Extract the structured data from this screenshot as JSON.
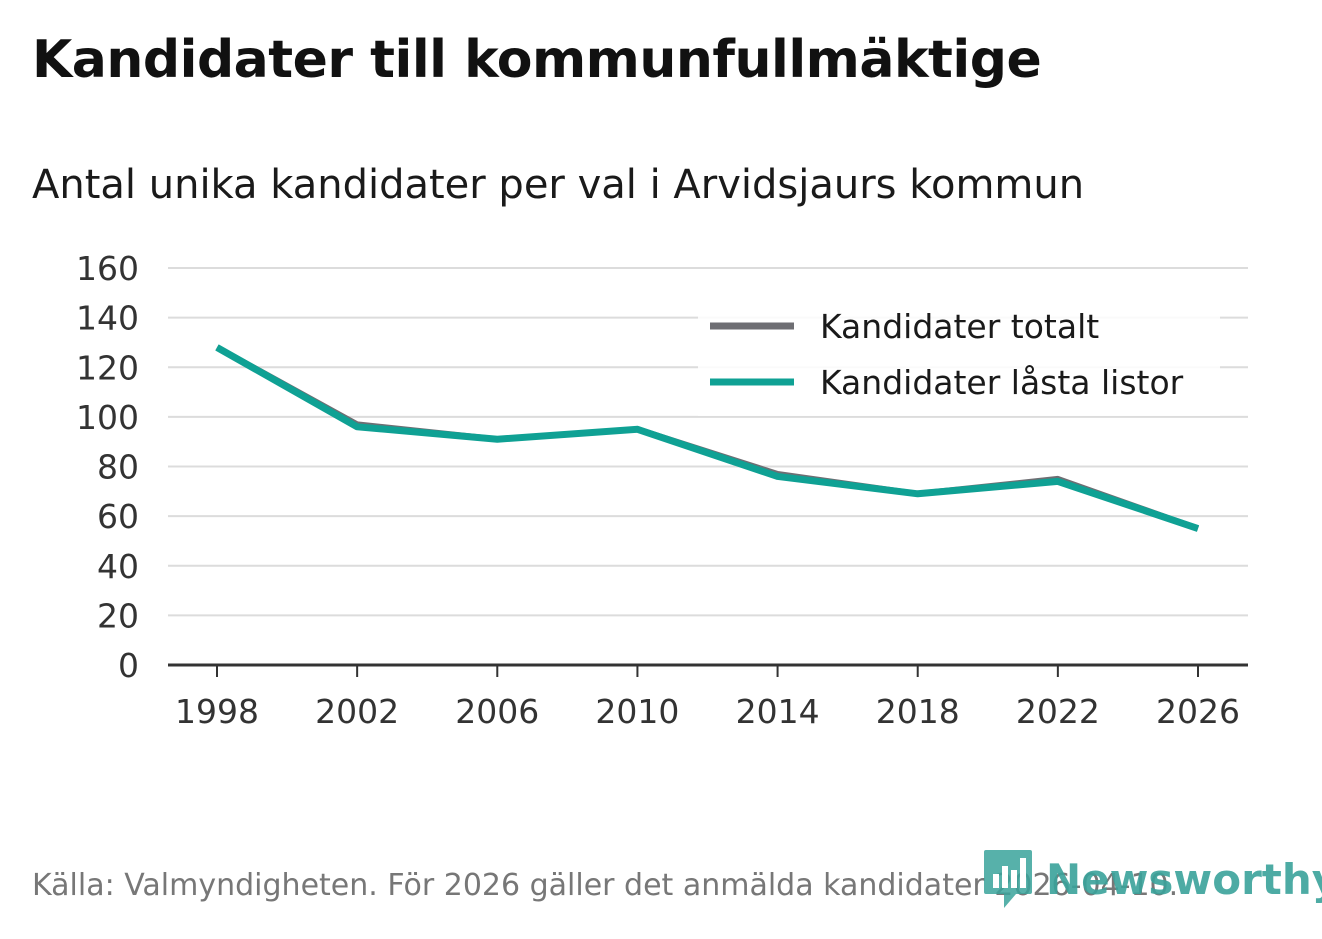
{
  "title": "Kandidater till kommunfullmäktige",
  "subtitle": "Antal unika kandidater per val i Arvidsjaurs kommun",
  "source": "Källa: Valmyndigheten. För 2026 gäller det anmälda kandidater 2026-04-10.",
  "brand": "Newsworthy",
  "chart_data": {
    "type": "line",
    "title": "Kandidater till kommunfullmäktige",
    "subtitle": "Antal unika kandidater per val i Arvidsjaurs kommun",
    "xlabel": "",
    "ylabel": "",
    "x": [
      "1998",
      "2002",
      "2006",
      "2010",
      "2014",
      "2018",
      "2022",
      "2026"
    ],
    "ylim": [
      0,
      160
    ],
    "yticks": [
      0,
      20,
      40,
      60,
      80,
      100,
      120,
      140,
      160
    ],
    "grid": true,
    "legend_position": "top-right",
    "series": [
      {
        "name": "Kandidater totalt",
        "color": "#6e6e73",
        "values": [
          128,
          97,
          91,
          95,
          77,
          69,
          75,
          55
        ]
      },
      {
        "name": "Kandidater låsta listor",
        "color": "#0fa194",
        "values": [
          128,
          96,
          91,
          95,
          76,
          69,
          74,
          55
        ]
      }
    ]
  }
}
